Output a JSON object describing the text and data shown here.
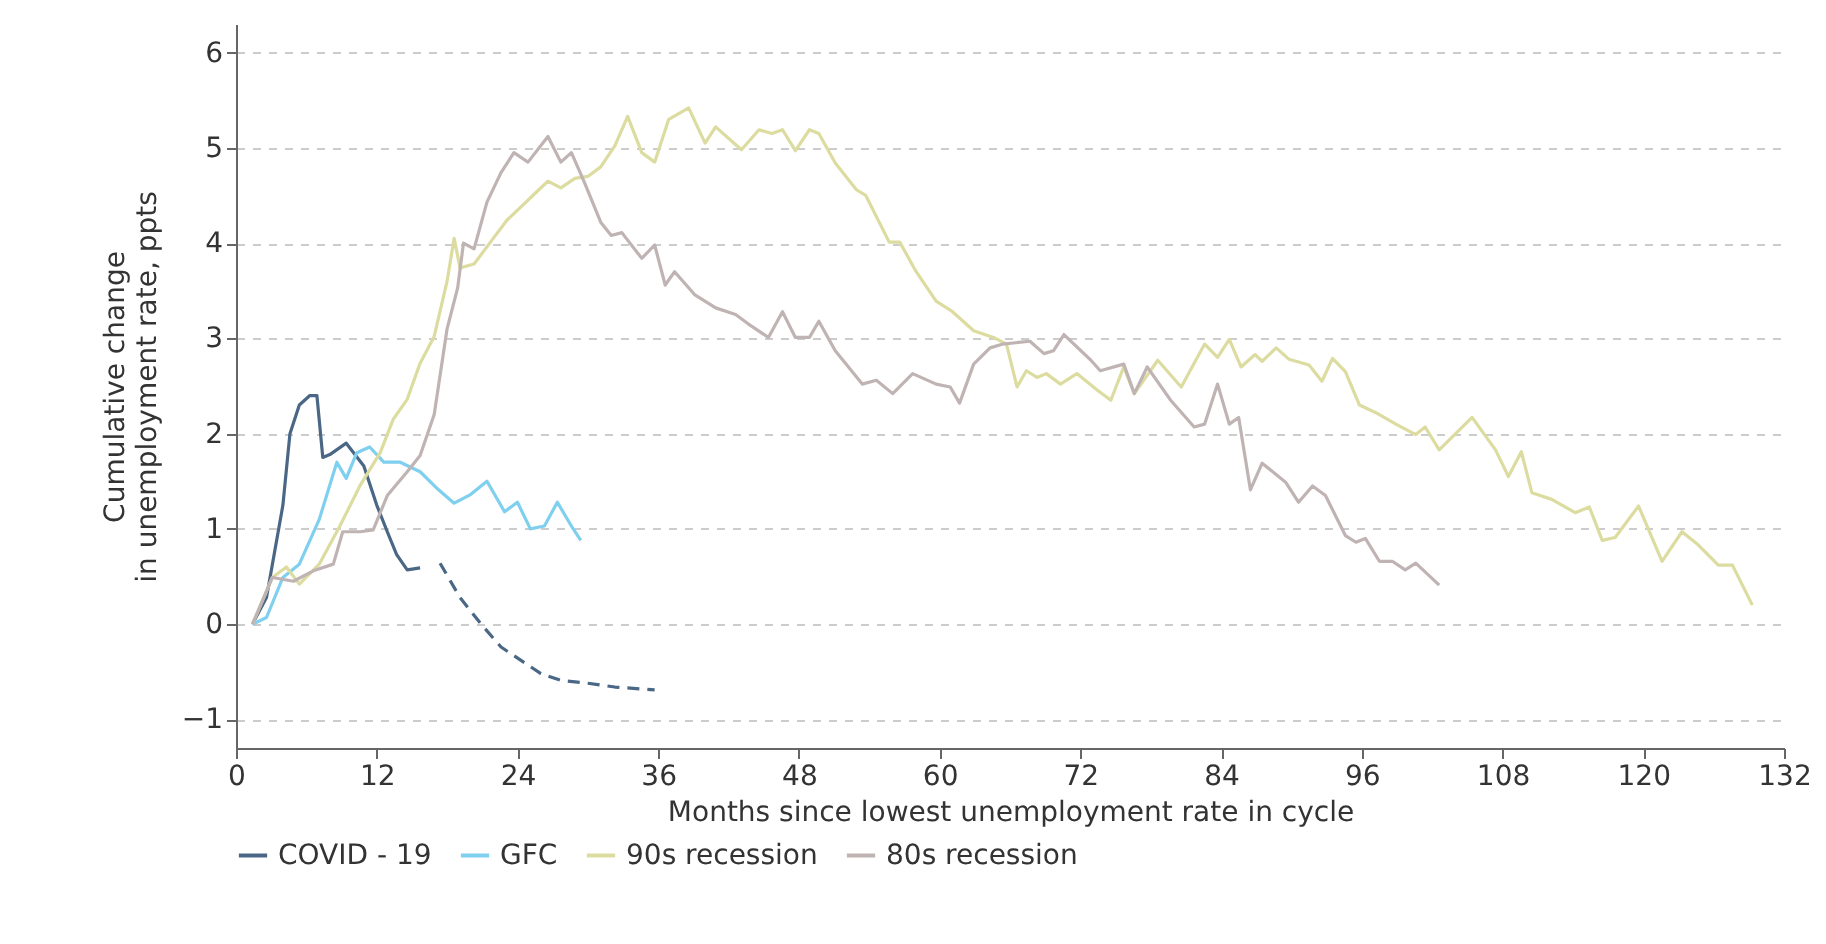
{
  "chart_data": {
    "type": "line",
    "xlabel": "Months since lowest unemployment rate in cycle",
    "ylabel": "Cumulative change in unemployment rate, ppts",
    "xlim": [
      0,
      132
    ],
    "xticks": [
      0,
      12,
      24,
      36,
      48,
      60,
      72,
      84,
      96,
      108,
      120,
      132
    ],
    "ylim": [
      -1.3,
      6.3
    ],
    "yticks": [
      -1,
      0,
      1,
      2,
      3,
      4,
      5,
      6
    ],
    "grid": "y",
    "legend": "bottom",
    "line_style": "solid",
    "series": [
      {
        "name": "COVID - 19",
        "color": "#4a6785",
        "x": [
          1.4,
          2.6,
          4,
          4.6,
          5.4,
          6.3,
          6.9,
          7.4,
          8,
          9.4,
          10.9,
          12,
          12.9,
          13.7,
          14.6,
          15.7
        ],
        "values": [
          0,
          0.28,
          1.25,
          2.0,
          2.3,
          2.4,
          2.4,
          1.75,
          1.78,
          1.9,
          1.66,
          1.25,
          0.97,
          0.73,
          0.57,
          0.59
        ]
      },
      {
        "color": "#4a6785",
        "line_style": "dashed",
        "x": [
          17.4,
          19.1,
          20.9,
          22.6,
          24.3,
          26,
          27.7,
          30,
          32.3,
          35.7
        ],
        "values": [
          0.64,
          0.28,
          0.0,
          -0.24,
          -0.38,
          -0.52,
          -0.59,
          -0.62,
          -0.66,
          -0.69
        ]
      },
      {
        "name": "GFC",
        "color": "#7fcfee",
        "x": [
          1.4,
          2.6,
          4,
          5.4,
          7.1,
          8.6,
          9.4,
          10.3,
          11.4,
          12.6,
          14,
          15.7,
          17.1,
          18.6,
          20,
          21.4,
          22.9,
          24,
          25.1,
          26.3,
          27.4,
          28.6,
          29.4
        ],
        "values": [
          0,
          0.07,
          0.49,
          0.63,
          1.1,
          1.7,
          1.53,
          1.8,
          1.86,
          1.7,
          1.7,
          1.6,
          1.43,
          1.27,
          1.36,
          1.5,
          1.18,
          1.28,
          1.0,
          1.03,
          1.28,
          1.03,
          0.88
        ]
      },
      {
        "name": "90s recession",
        "color": "#dcdca0",
        "x": [
          1.4,
          3.1,
          4.3,
          5.4,
          7.1,
          8.9,
          10.6,
          12.3,
          13.4,
          14.6,
          15.7,
          16.9,
          18,
          18.6,
          19.1,
          20.3,
          22,
          23.1,
          24.3,
          25.4,
          26.6,
          27.7,
          28.9,
          30,
          31.1,
          32.3,
          33.4,
          34.6,
          35.7,
          36.9,
          38.6,
          40,
          40.9,
          43.1,
          44.6,
          45.7,
          46.6,
          47.7,
          48.9,
          49.7,
          51.1,
          52.9,
          53.7,
          55.7,
          56.6,
          58,
          59.7,
          61.1,
          62.9,
          64.6,
          65.7,
          66.6,
          67.4,
          68.3,
          69.1,
          70.3,
          71.7,
          73.4,
          74.6,
          75.7,
          76.6,
          78.6,
          80.6,
          82.6,
          83.7,
          84.7,
          85.7,
          86.9,
          87.5,
          88.7,
          89.8,
          91.5,
          92.6,
          93.5,
          94.6,
          95.8,
          97.2,
          98.9,
          100.6,
          101.4,
          102.6,
          104,
          105.4,
          107.4,
          108.5,
          109.6,
          110.5,
          112.2,
          114.2,
          115.4,
          116.5,
          117.6,
          119.6,
          121.6,
          123.3,
          124.7,
          126.4,
          127.6,
          129.3
        ],
        "values": [
          0,
          0.49,
          0.6,
          0.42,
          0.63,
          1.04,
          1.46,
          1.8,
          2.15,
          2.36,
          2.74,
          3.02,
          3.6,
          4.05,
          3.74,
          3.78,
          4.06,
          4.24,
          4.38,
          4.51,
          4.65,
          4.58,
          4.68,
          4.7,
          4.8,
          5.02,
          5.33,
          4.95,
          4.85,
          5.3,
          5.42,
          5.05,
          5.22,
          4.98,
          5.19,
          5.15,
          5.19,
          4.97,
          5.19,
          5.15,
          4.84,
          4.56,
          4.5,
          4.01,
          4.01,
          3.7,
          3.39,
          3.28,
          3.08,
          3.01,
          2.94,
          2.49,
          2.66,
          2.59,
          2.63,
          2.52,
          2.63,
          2.46,
          2.35,
          2.7,
          2.42,
          2.77,
          2.49,
          2.94,
          2.8,
          2.99,
          2.7,
          2.83,
          2.76,
          2.9,
          2.78,
          2.72,
          2.55,
          2.79,
          2.65,
          2.3,
          2.22,
          2.1,
          1.99,
          2.07,
          1.83,
          2.0,
          2.17,
          1.83,
          1.55,
          1.81,
          1.38,
          1.31,
          1.17,
          1.23,
          0.88,
          0.91,
          1.24,
          0.66,
          0.97,
          0.83,
          0.62,
          0.62,
          0.2
        ]
      },
      {
        "name": "80s recession",
        "color": "#c0b3b3",
        "x": [
          1.4,
          3.1,
          4.9,
          6.6,
          8.3,
          9.1,
          10.6,
          11.7,
          12.9,
          14.6,
          15.7,
          16.9,
          18,
          18.9,
          19.4,
          20.3,
          21.4,
          22.6,
          23.7,
          24.9,
          26.6,
          27.7,
          28.6,
          29.7,
          31.1,
          32,
          32.9,
          34.6,
          35.7,
          36.6,
          37.4,
          39.1,
          40.9,
          42.6,
          43.7,
          45.4,
          46.6,
          47.7,
          48.9,
          49.7,
          51.1,
          53.4,
          54.6,
          56,
          57.7,
          59.7,
          60.9,
          61.7,
          62.9,
          64.3,
          65.4,
          67.7,
          68.9,
          69.7,
          70.6,
          72.9,
          73.7,
          75.7,
          76.6,
          77.7,
          79.7,
          81.7,
          82.6,
          83.7,
          84.7,
          85.5,
          86.5,
          87.5,
          89.5,
          90.6,
          91.8,
          92.9,
          94.6,
          95.5,
          96.3,
          97.5,
          98.6,
          99.7,
          100.6,
          102.6
        ],
        "values": [
          0,
          0.49,
          0.45,
          0.56,
          0.63,
          0.97,
          0.97,
          0.99,
          1.35,
          1.6,
          1.77,
          2.2,
          3.1,
          3.53,
          4.0,
          3.94,
          4.43,
          4.74,
          4.95,
          4.85,
          5.12,
          4.85,
          4.95,
          4.64,
          4.22,
          4.08,
          4.11,
          3.84,
          3.98,
          3.56,
          3.7,
          3.46,
          3.32,
          3.25,
          3.15,
          3.01,
          3.28,
          3.01,
          3.01,
          3.18,
          2.87,
          2.52,
          2.56,
          2.42,
          2.63,
          2.52,
          2.49,
          2.32,
          2.73,
          2.9,
          2.94,
          2.97,
          2.84,
          2.87,
          3.04,
          2.77,
          2.66,
          2.73,
          2.42,
          2.7,
          2.35,
          2.07,
          2.1,
          2.52,
          2.1,
          2.17,
          1.41,
          1.69,
          1.49,
          1.28,
          1.45,
          1.35,
          0.93,
          0.86,
          0.9,
          0.66,
          0.66,
          0.57,
          0.64,
          0.41
        ]
      }
    ]
  }
}
